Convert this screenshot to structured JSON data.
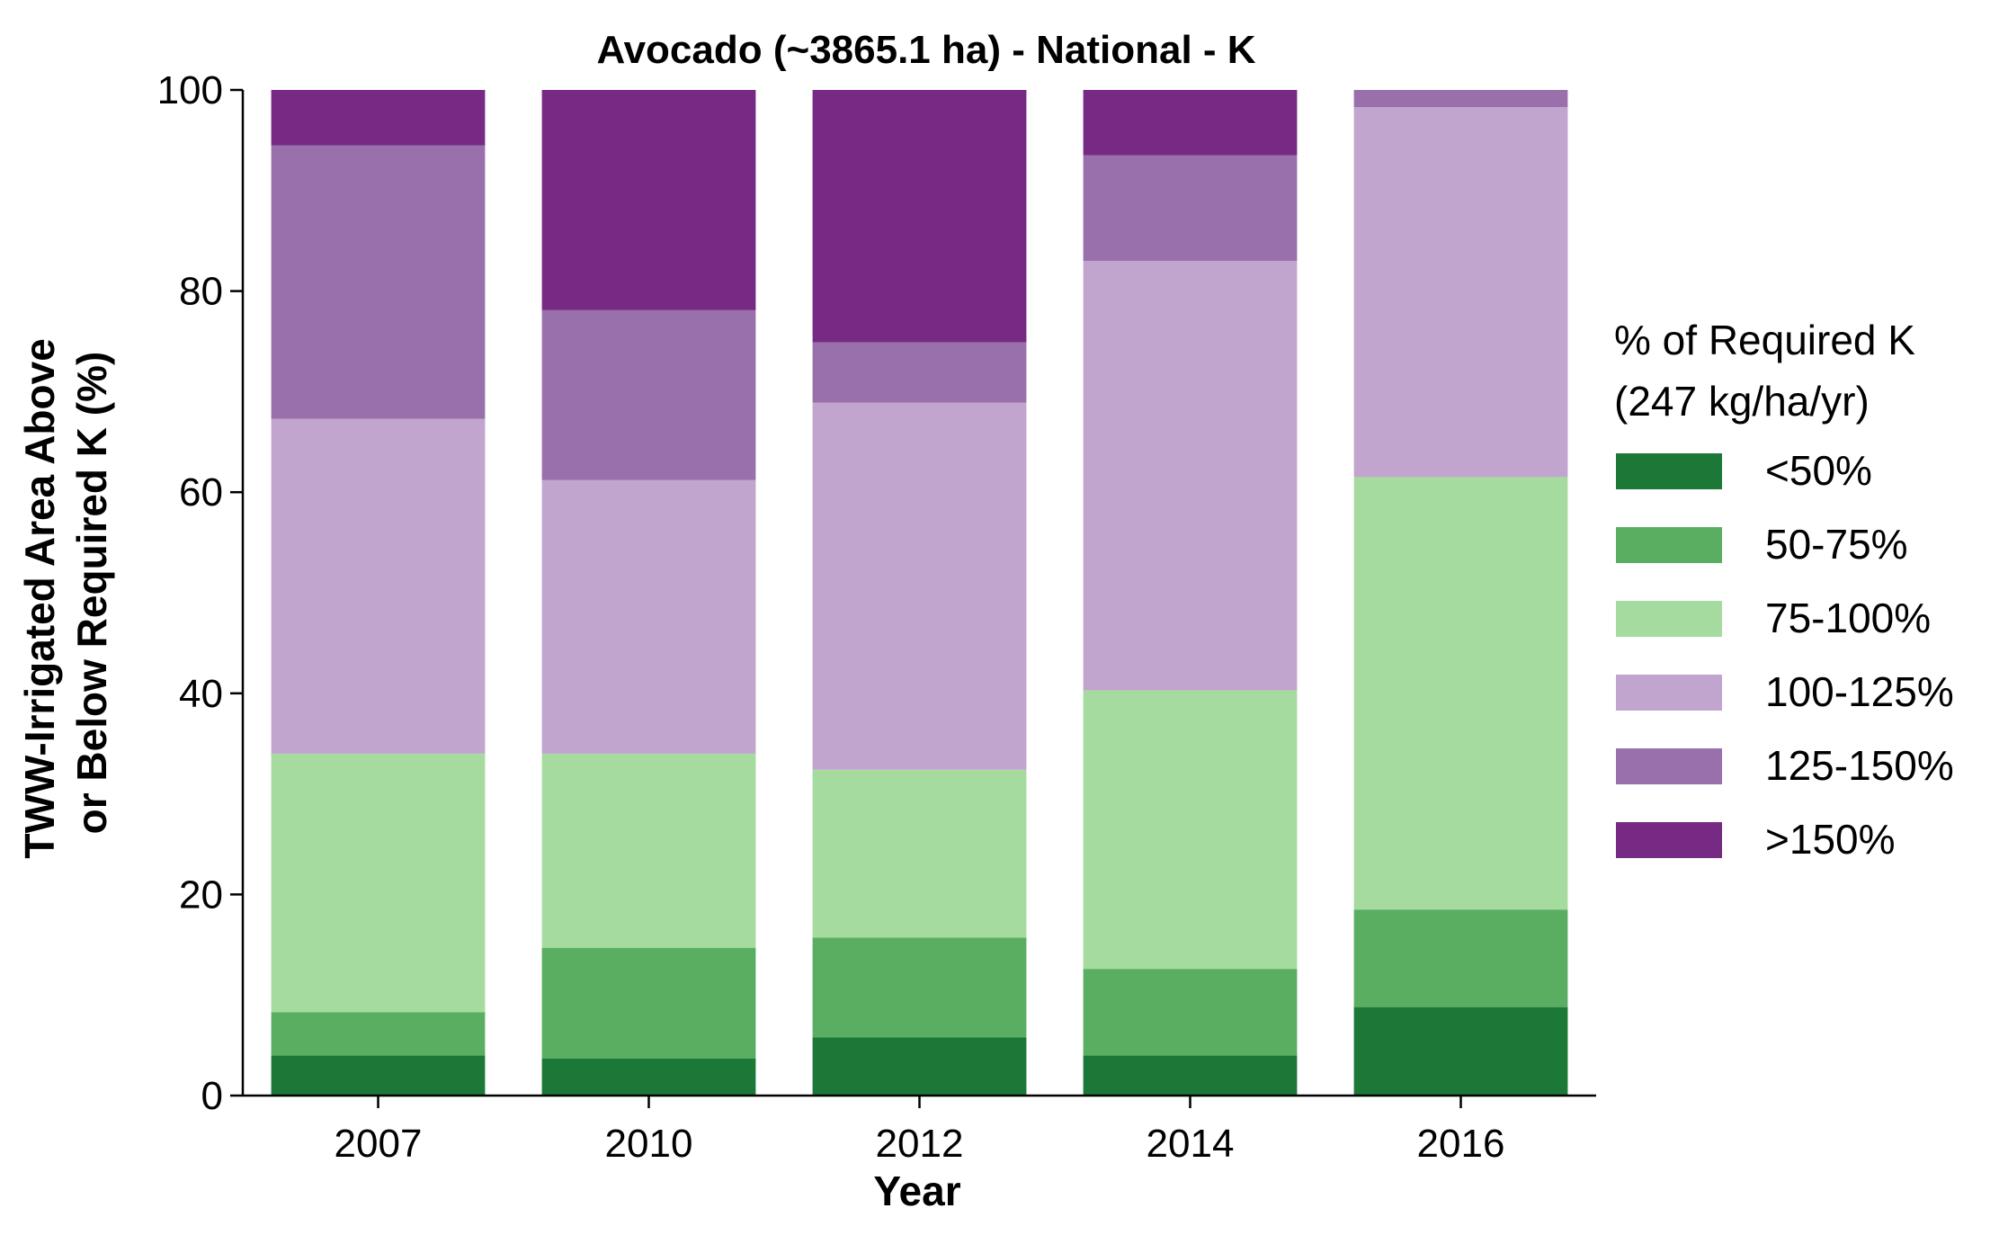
{
  "chart_data": {
    "type": "bar",
    "stacked": true,
    "title": "Avocado (~3865.1 ha) - National - K",
    "xlabel": "Year",
    "ylabel_lines": [
      "TWW-Irrigated Area Above",
      "or Below Required K (%)"
    ],
    "ylim": [
      0,
      100
    ],
    "yticks": [
      "0",
      "20",
      "40",
      "60",
      "80",
      "100"
    ],
    "categories": [
      "2007",
      "2010",
      "2012",
      "2014",
      "2016"
    ],
    "legend_title_lines": [
      "% of Required K",
      "(247 kg/ha/yr)"
    ],
    "legend_position": "right",
    "grid": false,
    "series": [
      {
        "name": "<50%",
        "color": "#1b7837",
        "values": [
          4.0,
          3.7,
          5.8,
          4.0,
          8.8
        ]
      },
      {
        "name": "50-75%",
        "color": "#5aae61",
        "values": [
          4.3,
          11.0,
          9.9,
          8.6,
          9.7
        ]
      },
      {
        "name": "75-100%",
        "color": "#a6dba0",
        "values": [
          25.7,
          19.3,
          16.7,
          27.7,
          43.0
        ]
      },
      {
        "name": "100-125%",
        "color": "#c2a5cf",
        "values": [
          33.3,
          27.2,
          36.5,
          42.7,
          36.8
        ]
      },
      {
        "name": "125-150%",
        "color": "#9970ab",
        "values": [
          27.2,
          16.9,
          6.0,
          10.5,
          1.7
        ]
      },
      {
        "name": ">150%",
        "color": "#762a83",
        "values": [
          5.5,
          21.9,
          25.1,
          6.5,
          0.0
        ]
      }
    ]
  }
}
